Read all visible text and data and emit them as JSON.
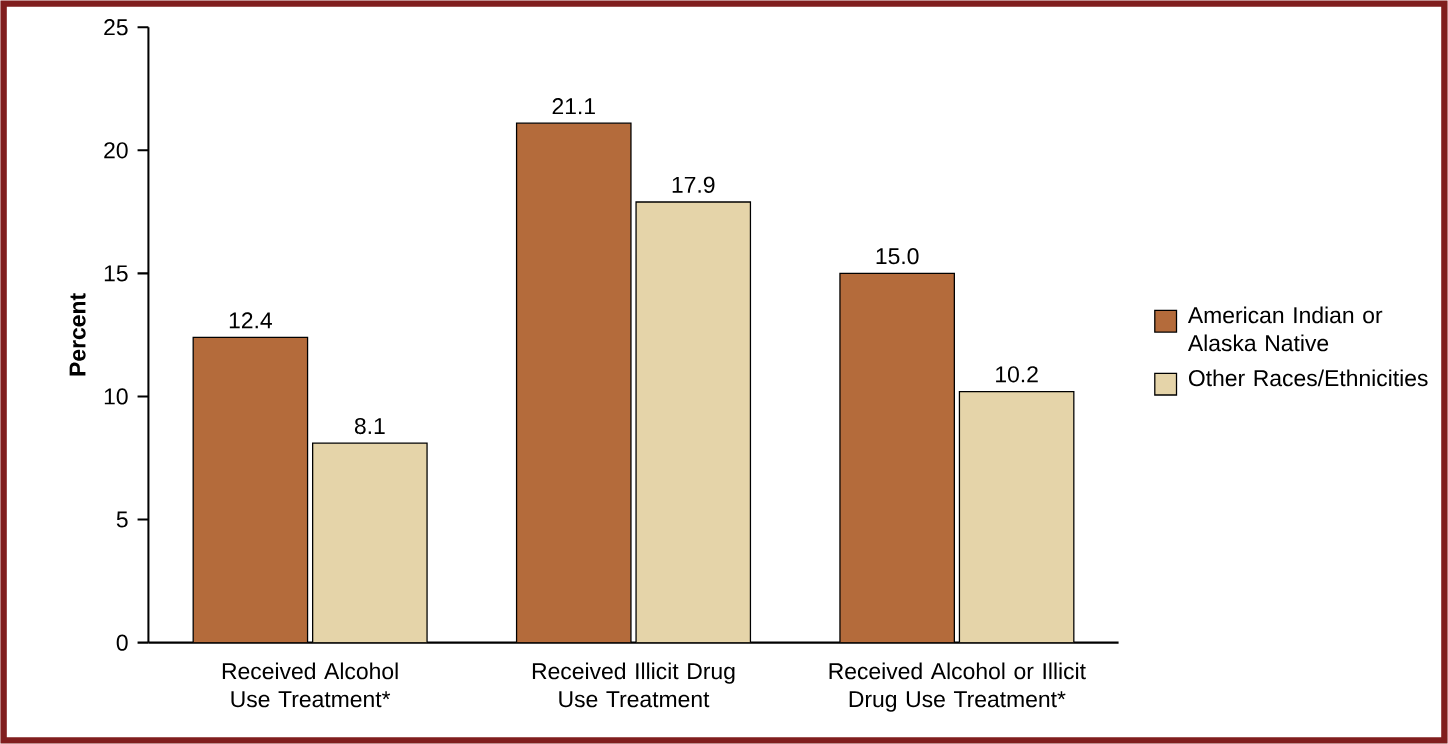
{
  "chart_data": {
    "type": "bar",
    "ylabel": "Percent",
    "categories": [
      "Received Alcohol Use Treatment*",
      "Received Illicit Drug Use Treatment",
      "Received Alcohol or Illicit Drug Use Treatment*"
    ],
    "series": [
      {
        "name": "American Indian or Alaska Native",
        "color": "#b46b3b",
        "values": [
          12.4,
          21.1,
          15.0
        ],
        "value_labels": [
          "12.4",
          "21.1",
          "15.0"
        ]
      },
      {
        "name": "Other Races/Ethnicities",
        "color": "#e5d4a9",
        "values": [
          8.1,
          17.9,
          10.2
        ],
        "value_labels": [
          "8.1",
          "17.9",
          "10.2"
        ]
      }
    ],
    "ylim": [
      0,
      25
    ],
    "yticks": [
      0,
      5,
      10,
      15,
      20,
      25
    ],
    "grid": false,
    "legend": "right"
  }
}
